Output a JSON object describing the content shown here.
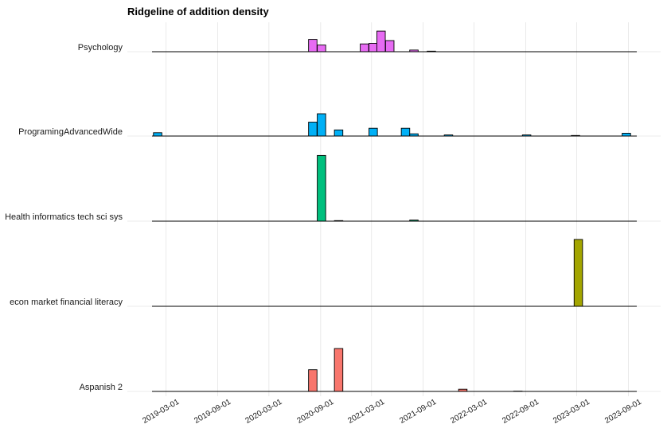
{
  "chart_data": {
    "type": "ridgeline histogram",
    "title": "Ridgeline of addition density",
    "xlabel": "",
    "ylabel": "",
    "x_ticks": [
      "2019-03-01",
      "2019-09-01",
      "2020-03-01",
      "2020-09-01",
      "2021-03-01",
      "2021-09-01",
      "2022-03-01",
      "2022-09-01",
      "2023-03-01",
      "2023-09-01"
    ],
    "xlim": [
      "2019-01-10",
      "2023-10-01"
    ],
    "bin_width_days": 30,
    "grid": true,
    "legend": "none",
    "series": [
      {
        "name": "Aspanish 2",
        "color": "#F8766D",
        "bins": [
          {
            "start": "2020-07-20",
            "density": 0.39
          },
          {
            "start": "2020-10-20",
            "density": 0.77
          },
          {
            "start": "2022-01-05",
            "density": 0.04
          },
          {
            "start": "2022-07-20",
            "density": 0.005
          }
        ]
      },
      {
        "name": "econ market financial literacy",
        "color": "#A3A500",
        "bins": [
          {
            "start": "2023-02-20",
            "density": 1.2
          }
        ]
      },
      {
        "name": "Health informatics tech sci sys",
        "color": "#00BF7D",
        "bins": [
          {
            "start": "2020-08-20",
            "density": 1.18
          },
          {
            "start": "2020-10-20",
            "density": 0.01
          },
          {
            "start": "2021-07-15",
            "density": 0.02
          }
        ]
      },
      {
        "name": "ProgramingAdvancedWide",
        "color": "#00B0F6",
        "bins": [
          {
            "start": "2019-01-15",
            "density": 0.06
          },
          {
            "start": "2020-07-20",
            "density": 0.25
          },
          {
            "start": "2020-08-20",
            "density": 0.4
          },
          {
            "start": "2020-10-20",
            "density": 0.11
          },
          {
            "start": "2021-02-20",
            "density": 0.14
          },
          {
            "start": "2021-06-15",
            "density": 0.14
          },
          {
            "start": "2021-07-15",
            "density": 0.04
          },
          {
            "start": "2021-11-15",
            "density": 0.02
          },
          {
            "start": "2022-08-20",
            "density": 0.02
          },
          {
            "start": "2023-02-10",
            "density": 0.01
          },
          {
            "start": "2023-08-10",
            "density": 0.05
          }
        ]
      },
      {
        "name": "Psychology",
        "color": "#E76BF3",
        "bins": [
          {
            "start": "2020-07-20",
            "density": 0.22
          },
          {
            "start": "2020-08-20",
            "density": 0.12
          },
          {
            "start": "2021-01-20",
            "density": 0.14
          },
          {
            "start": "2021-02-20",
            "density": 0.15
          },
          {
            "start": "2021-03-20",
            "density": 0.37
          },
          {
            "start": "2021-04-20",
            "density": 0.2
          },
          {
            "start": "2021-07-15",
            "density": 0.03
          },
          {
            "start": "2021-09-15",
            "density": 0.01
          }
        ]
      }
    ]
  }
}
